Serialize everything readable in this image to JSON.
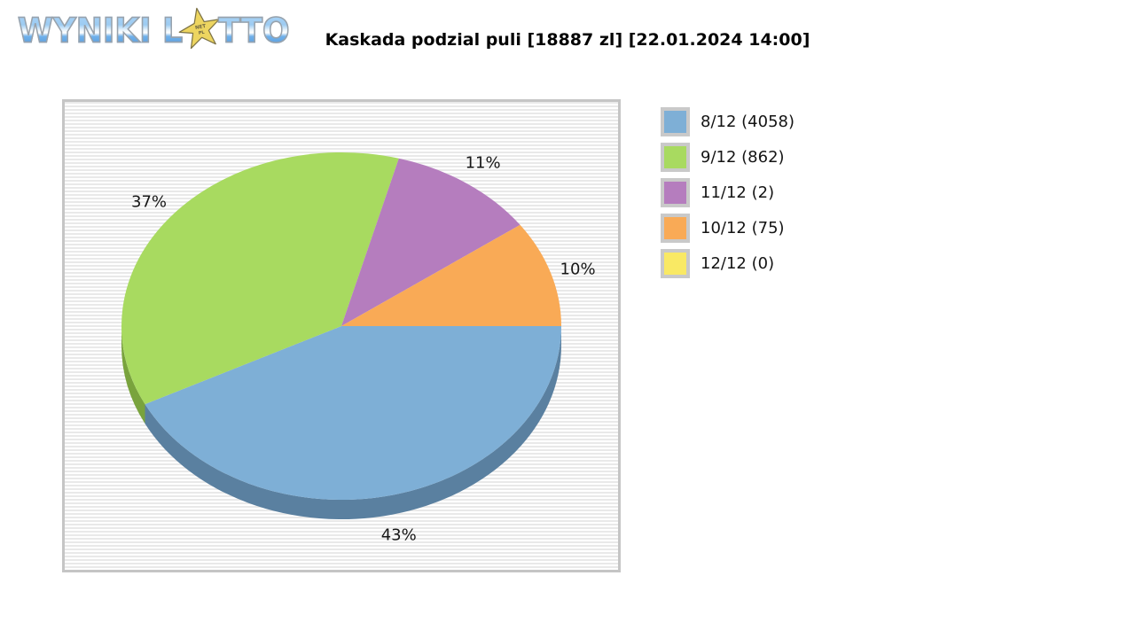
{
  "logo": {
    "text_left": "WYNIKI L",
    "text_right": "TTO",
    "star_line1": "NET",
    "star_line2": "PL"
  },
  "header": {
    "title": "Kaskada podzial puli [18887 zl] [22.01.2024 14:00]"
  },
  "legend": {
    "position": "right",
    "items": [
      {
        "label": "8/12 (4058)",
        "color": "#7eafd6"
      },
      {
        "label": "9/12 (862)",
        "color": "#a8da60"
      },
      {
        "label": "11/12 (2)",
        "color": "#b57dbe"
      },
      {
        "label": "10/12 (75)",
        "color": "#f9aa56"
      },
      {
        "label": "12/12 (0)",
        "color": "#f9e964"
      }
    ]
  },
  "chart_data": {
    "type": "pie",
    "title": "Kaskada podzial puli [18887 zl] [22.01.2024 14:00]",
    "style": "3d-pie",
    "start_angle_deg": 0,
    "direction": "clockwise",
    "legend_position": "right",
    "slices": [
      {
        "category": "8/12",
        "winners": 4058,
        "percent": 43,
        "percent_label": "43%",
        "color": "#7eafd6",
        "side_color": "#5a80a0"
      },
      {
        "category": "9/12",
        "winners": 862,
        "percent": 37,
        "percent_label": "37%",
        "color": "#a8da60",
        "side_color": "#79a33d"
      },
      {
        "category": "11/12",
        "winners": 2,
        "percent": 11,
        "percent_label": "11%",
        "color": "#b57dbe",
        "side_color": "#8d5c96"
      },
      {
        "category": "10/12",
        "winners": 75,
        "percent": 10,
        "percent_label": "10%",
        "color": "#f9aa56",
        "side_color": "#c77f35"
      },
      {
        "category": "12/12",
        "winners": 0,
        "percent": 0,
        "percent_label": "",
        "color": "#f9e964",
        "side_color": "#c9b93f"
      }
    ]
  }
}
